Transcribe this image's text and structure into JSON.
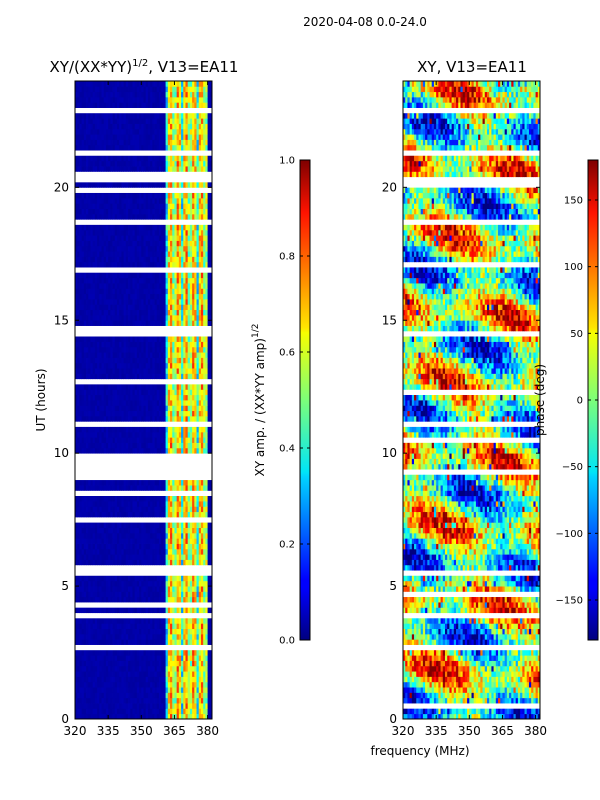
{
  "suptitle": "2020-04-08 0.0-24.0",
  "colors": {
    "background": "#ffffff",
    "gap": "#ffffff",
    "axis": "#000000"
  },
  "chart_data": [
    {
      "type": "heatmap",
      "title_main": "XY/(XX*YY)",
      "title_sup": "1/2",
      "title_tail": ", V13=EA11",
      "xlabel": "",
      "ylabel": "UT (hours)",
      "xlim": [
        320,
        382
      ],
      "ylim": [
        0,
        24
      ],
      "xticks": [
        320,
        335,
        350,
        365,
        380
      ],
      "yticks": [
        0,
        5,
        10,
        15,
        20
      ],
      "value_kind": "amplitude",
      "background_level": 0.03,
      "active_band_mhz": [
        361,
        379
      ],
      "gap_intervals_hours": [
        [
          5.45,
          5.7
        ],
        [
          9.2,
          9.75
        ],
        [
          14.35,
          14.6
        ],
        [
          18.55,
          18.85
        ],
        [
          20.3,
          20.45
        ],
        [
          21.25,
          21.35
        ],
        [
          22.9,
          23.05
        ],
        [
          23.35,
          23.45
        ],
        [
          3.9,
          3.98
        ],
        [
          2.55,
          2.7
        ],
        [
          11.05,
          11.15
        ],
        [
          12.7,
          12.8
        ],
        [
          16.4,
          16.48
        ],
        [
          7.5,
          7.58
        ]
      ],
      "colorbar": {
        "label_main": "XY amp. / (XX*YY amp)",
        "label_sup": "1/2",
        "range": [
          0,
          1
        ],
        "ticks": [
          "0.0",
          "0.2",
          "0.4",
          "0.6",
          "0.8",
          "1.0"
        ],
        "tick_values": [
          0,
          0.2,
          0.4,
          0.6,
          0.8,
          1.0
        ]
      }
    },
    {
      "type": "heatmap",
      "title": "XY, V13=EA11",
      "xlabel": "frequency (MHz)",
      "ylabel": "",
      "xlim": [
        320,
        382
      ],
      "ylim": [
        0,
        24
      ],
      "xticks": [
        320,
        335,
        350,
        365,
        380
      ],
      "yticks": [
        0,
        5,
        10,
        15,
        20
      ],
      "value_kind": "phase",
      "gap_intervals_hours": [
        [
          9.2,
          9.4
        ],
        [
          14.35,
          14.6
        ],
        [
          18.55,
          18.85
        ],
        [
          5.45,
          5.6
        ],
        [
          20.3,
          20.45
        ],
        [
          22.9,
          23.05
        ],
        [
          23.35,
          23.45
        ],
        [
          3.9,
          3.98
        ],
        [
          2.55,
          2.7
        ],
        [
          11.05,
          11.15
        ],
        [
          16.4,
          16.48
        ]
      ],
      "colorbar": {
        "label": "phase (deg)",
        "range": [
          -180,
          180
        ],
        "ticks": [
          "150",
          "100",
          "50",
          "0",
          "−50",
          "−100",
          "−150"
        ],
        "tick_values": [
          150,
          100,
          50,
          0,
          -50,
          -100,
          -150
        ]
      }
    }
  ]
}
